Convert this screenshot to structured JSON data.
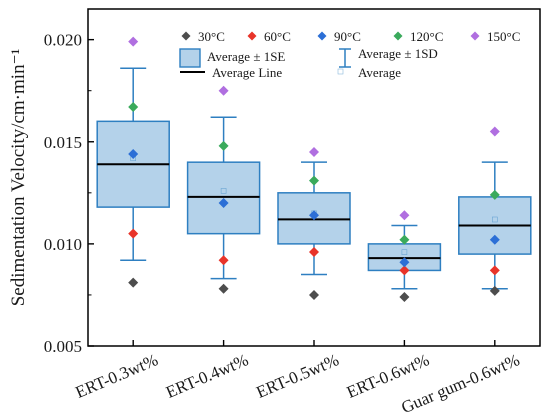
{
  "chart_data": {
    "type": "box",
    "ylabel": "Sedimentation Velocity/cm·min⁻¹",
    "xlabel": "",
    "ylim": [
      0.005,
      0.0215
    ],
    "yticks": [
      "0.005",
      "0.010",
      "0.015",
      "0.020"
    ],
    "ytick_values": [
      0.005,
      0.01,
      0.015,
      0.02
    ],
    "categories": [
      "ERT-0.3wt%",
      "ERT-0.4wt%",
      "ERT-0.5wt%",
      "ERT-0.6wt%",
      "Guar gum-0.6wt%"
    ],
    "series": [
      {
        "name": "30°C",
        "color": "#4d4d4d",
        "values": [
          0.0081,
          0.0078,
          0.0075,
          0.0074,
          0.0077
        ]
      },
      {
        "name": "60°C",
        "color": "#e8342a",
        "values": [
          0.0105,
          0.0092,
          0.0096,
          0.0087,
          0.0087
        ]
      },
      {
        "name": "90°C",
        "color": "#2c6fd6",
        "values": [
          0.0144,
          0.012,
          0.0114,
          0.0091,
          0.0102
        ]
      },
      {
        "name": "120°C",
        "color": "#3aaa5c",
        "values": [
          0.0167,
          0.0148,
          0.0131,
          0.0102,
          0.0124
        ]
      },
      {
        "name": "150°C",
        "color": "#b06fe0",
        "values": [
          0.0199,
          0.0175,
          0.0145,
          0.0114,
          0.0155
        ]
      }
    ],
    "boxes": [
      {
        "mean": 0.0139,
        "se_low": 0.0118,
        "se_high": 0.016,
        "sd_low": 0.0092,
        "sd_high": 0.0186
      },
      {
        "mean": 0.0123,
        "se_low": 0.0105,
        "se_high": 0.014,
        "sd_low": 0.0083,
        "sd_high": 0.0162
      },
      {
        "mean": 0.0112,
        "se_low": 0.01,
        "se_high": 0.0125,
        "sd_low": 0.0085,
        "sd_high": 0.014
      },
      {
        "mean": 0.0093,
        "se_low": 0.0087,
        "se_high": 0.01,
        "sd_low": 0.0078,
        "sd_high": 0.0109
      },
      {
        "mean": 0.0109,
        "se_low": 0.0095,
        "se_high": 0.0123,
        "sd_low": 0.0078,
        "sd_high": 0.014
      }
    ],
    "legend": {
      "placement": "top",
      "box_label": "Average ± 1SE",
      "whisker_label": "Average ± 1SD",
      "line_label": "Average Line",
      "mean_label": "Average"
    },
    "colors": {
      "box_fill": "#b4d2ea",
      "box_stroke": "#2e7fc1",
      "whisker": "#2e7fc1",
      "mean_line": "#000000",
      "axis": "#000000"
    }
  }
}
